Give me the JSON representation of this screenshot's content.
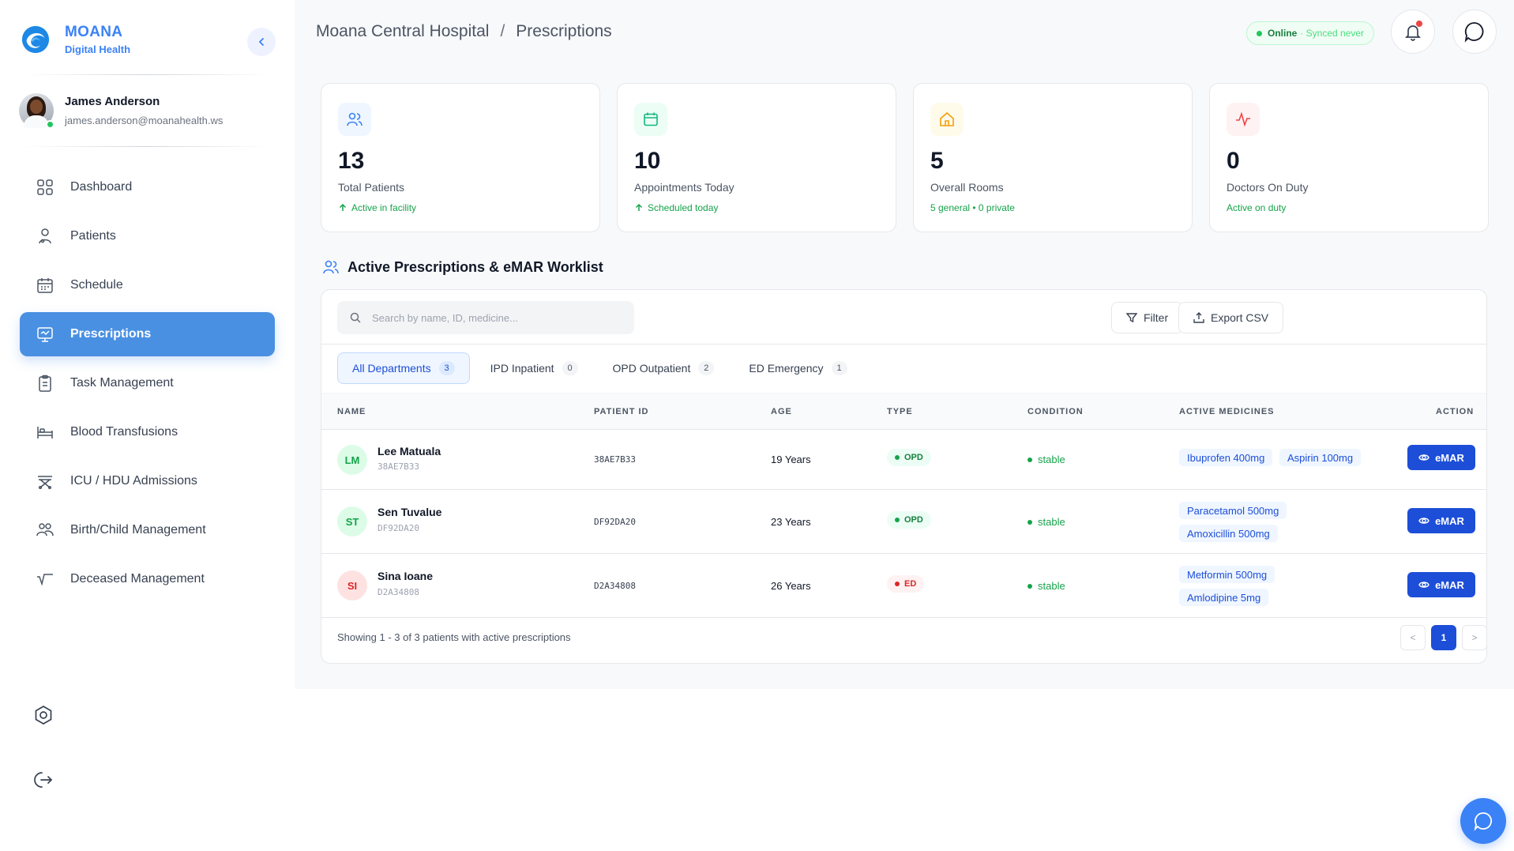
{
  "brand": {
    "name": "MOANA",
    "subtitle": "Digital Health"
  },
  "user": {
    "name": "James Anderson",
    "email": "james.anderson@moanahealth.ws"
  },
  "nav": [
    {
      "label": "Dashboard",
      "icon": "dashboard-grid-icon"
    },
    {
      "label": "Patients",
      "icon": "patients-icon"
    },
    {
      "label": "Schedule",
      "icon": "calendar-icon"
    },
    {
      "label": "Prescriptions",
      "icon": "prescription-monitor-icon",
      "active": true
    },
    {
      "label": "Task Management",
      "icon": "clipboard-icon"
    },
    {
      "label": "Blood Transfusions",
      "icon": "bed-icon"
    },
    {
      "label": "ICU / HDU Admissions",
      "icon": "stretcher-icon"
    },
    {
      "label": "Birth/Child Management",
      "icon": "family-icon"
    },
    {
      "label": "Deceased Management",
      "icon": "flatline-icon"
    }
  ],
  "breadcrumb": {
    "hospital": "Moana Central Hospital",
    "separator": "/",
    "page": "Prescriptions"
  },
  "status": {
    "online": "Online",
    "sync": "· Synced never"
  },
  "stats": [
    {
      "value": "13",
      "label": "Total Patients",
      "sub": "Active in facility",
      "arrow": true,
      "color": "#3b82f6",
      "bg": "#eff6ff"
    },
    {
      "value": "10",
      "label": "Appointments Today",
      "sub": "Scheduled today",
      "arrow": true,
      "color": "#10b981",
      "bg": "#ecfdf5"
    },
    {
      "value": "5",
      "label": "Overall Rooms",
      "sub": "5 general • 0 private",
      "arrow": false,
      "color": "#f59e0b",
      "bg": "#fffbeb"
    },
    {
      "value": "0",
      "label": "Doctors On Duty",
      "sub": "Active on duty",
      "arrow": false,
      "color": "#ef4444",
      "bg": "#fef2f2"
    }
  ],
  "section": {
    "title": "Active Prescriptions & eMAR Worklist"
  },
  "search": {
    "placeholder": "Search by name, ID, medicine...",
    "value": ""
  },
  "toolbar": {
    "filter": "Filter",
    "export": "Export CSV"
  },
  "tabs": [
    {
      "label": "All Departments",
      "count": "3",
      "active": true
    },
    {
      "label": "IPD Inpatient",
      "count": "0"
    },
    {
      "label": "OPD Outpatient",
      "count": "2"
    },
    {
      "label": "ED Emergency",
      "count": "1"
    }
  ],
  "columns": [
    "NAME",
    "PATIENT ID",
    "AGE",
    "TYPE",
    "CONDITION",
    "ACTIVE MEDICINES",
    "ACTION"
  ],
  "rows": [
    {
      "initials": "LM",
      "name": "Lee Matuala",
      "id": "38AE7B33",
      "age": "19 Years",
      "type": "OPD",
      "condition": "stable",
      "medicines": [
        "Ibuprofen 400mg",
        "Aspirin 100mg"
      ],
      "action": "eMAR",
      "avatar_color": "#16a34a",
      "avatar_bg": "#dcfce7"
    },
    {
      "initials": "ST",
      "name": "Sen Tuvalue",
      "id": "DF92DA20",
      "age": "23 Years",
      "type": "OPD",
      "condition": "stable",
      "medicines": [
        "Paracetamol 500mg",
        "Amoxicillin 500mg"
      ],
      "action": "eMAR",
      "avatar_color": "#16a34a",
      "avatar_bg": "#dcfce7"
    },
    {
      "initials": "SI",
      "name": "Sina Ioane",
      "id": "D2A34808",
      "age": "26 Years",
      "type": "ED",
      "condition": "stable",
      "medicines": [
        "Metformin 500mg",
        "Amlodipine 5mg"
      ],
      "action": "eMAR",
      "avatar_color": "#dc2626",
      "avatar_bg": "#fee2e2"
    }
  ],
  "footer": {
    "text": "Showing 1 - 3 of 3 patients with active prescriptions",
    "prev": "<",
    "page": "1",
    "next": ">"
  }
}
